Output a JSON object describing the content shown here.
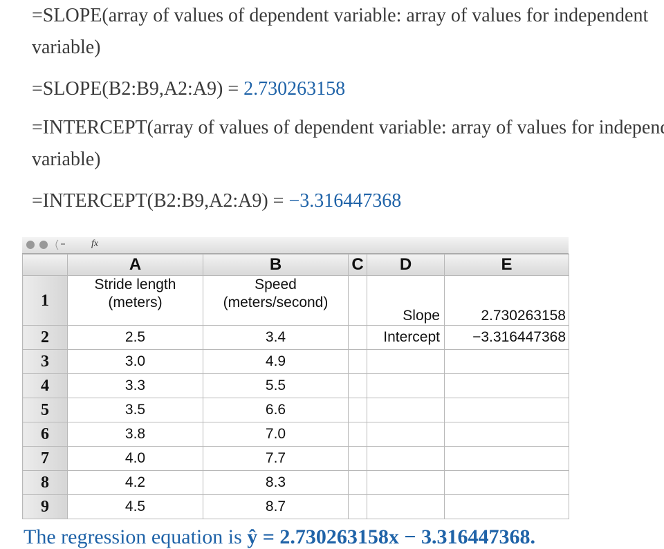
{
  "paragraphs": [
    {
      "text": "=SLOPE(array of values of dependent variable: array of values for independent variable)"
    },
    {
      "expression": "=SLOPE(B2:B9,A2:A9) =",
      "result": "2.730263158"
    },
    {
      "text": "=INTERCEPT(array of values of dependent variable: array of values for independent variable)"
    },
    {
      "expression": "=INTERCEPT(B2:B9,A2:A9) =",
      "result": "−3.316447368"
    }
  ],
  "spreadsheet": {
    "function_label": "fx",
    "columns": [
      "A",
      "B",
      "C",
      "D",
      "E"
    ],
    "rows": [
      {
        "number": "1",
        "cells": [
          "Stride length\n(meters)",
          "Speed\n(meters/second)",
          null,
          "Slope",
          "2.730263158"
        ]
      },
      {
        "number": "2",
        "cells": [
          "2.5",
          "3.4",
          null,
          "Intercept",
          "−3.316447368"
        ]
      },
      {
        "number": "3",
        "cells": [
          "3.0",
          "4.9",
          null,
          null,
          null
        ]
      },
      {
        "number": "4",
        "cells": [
          "3.3",
          "5.5",
          null,
          null,
          null
        ]
      },
      {
        "number": "5",
        "cells": [
          "3.5",
          "6.6",
          null,
          null,
          null
        ]
      },
      {
        "number": "6",
        "cells": [
          "3.8",
          "7.0",
          null,
          null,
          null
        ]
      },
      {
        "number": "7",
        "cells": [
          "4.0",
          "7.7",
          null,
          null,
          null
        ]
      },
      {
        "number": "8",
        "cells": [
          "4.2",
          "8.3",
          null,
          null,
          null
        ]
      },
      {
        "number": "9",
        "cells": [
          "4.5",
          "8.7",
          null,
          null,
          null
        ]
      }
    ]
  },
  "equation": {
    "prefix": "The regression equation is",
    "math": "ŷ = 2.730263158x − 3.316447368."
  }
}
